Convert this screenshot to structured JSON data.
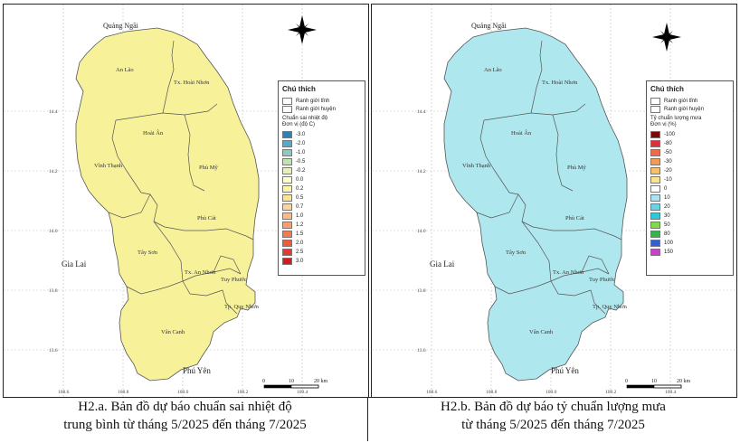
{
  "panels": [
    {
      "caption_line1": "H2.a. Bản đồ dự báo chuẩn sai nhiệt độ",
      "caption_line2": "trung bình từ tháng 5/2025 đến tháng 7/2025",
      "fill_color": "#f7f29a",
      "legend": {
        "title": "Chú thích",
        "items": [
          "Ranh giới tỉnh",
          "Ranh giới huyện"
        ],
        "class_title": "Chuẩn sai nhiệt độ",
        "class_unit": "Đơn vị (độ C)",
        "classes": [
          {
            "label": "-3.0",
            "color": "#2b83ba"
          },
          {
            "label": "-2.0",
            "color": "#5aa8c8"
          },
          {
            "label": "-1.0",
            "color": "#8cc9c0"
          },
          {
            "label": "-0.5",
            "color": "#c2e3b0"
          },
          {
            "label": "-0.2",
            "color": "#e6f2b4"
          },
          {
            "label": "0.0",
            "color": "#ffffcc"
          },
          {
            "label": "0.2",
            "color": "#fff3a6"
          },
          {
            "label": "0.5",
            "color": "#fee391"
          },
          {
            "label": "0.7",
            "color": "#fdd49e"
          },
          {
            "label": "1.0",
            "color": "#fdbb84"
          },
          {
            "label": "1.2",
            "color": "#fc9d6b"
          },
          {
            "label": "1.5",
            "color": "#f57a4f"
          },
          {
            "label": "2.0",
            "color": "#ee5a3d"
          },
          {
            "label": "2.5",
            "color": "#e23a2d"
          },
          {
            "label": "3.0",
            "color": "#d7191c"
          }
        ]
      }
    },
    {
      "caption_line1": "H2.b. Bản đồ dự báo tỷ chuẩn lượng mưa",
      "caption_line2": "từ tháng 5/2025 đến tháng 7/2025",
      "fill_color": "#aee8ee",
      "legend": {
        "title": "Chú thích",
        "items": [
          "Ranh giới tỉnh",
          "Ranh giới huyện"
        ],
        "class_title": "Tỷ chuẩn lượng mưa",
        "class_unit": "Đơn vị (%)",
        "classes": [
          {
            "label": "-100",
            "color": "#7a0a0a"
          },
          {
            "label": "-80",
            "color": "#d9303a"
          },
          {
            "label": "-50",
            "color": "#f06a4a"
          },
          {
            "label": "-30",
            "color": "#f59a56"
          },
          {
            "label": "-20",
            "color": "#f6c168"
          },
          {
            "label": "-10",
            "color": "#f8e68e"
          },
          {
            "label": "0",
            "color": "#ffffff"
          },
          {
            "label": "10",
            "color": "#a9e4f0"
          },
          {
            "label": "20",
            "color": "#6ed2e6"
          },
          {
            "label": "30",
            "color": "#2ec9d8"
          },
          {
            "label": "50",
            "color": "#82d94a"
          },
          {
            "label": "80",
            "color": "#36b34a"
          },
          {
            "label": "100",
            "color": "#2f5fd0"
          },
          {
            "label": "150",
            "color": "#c643c6"
          }
        ]
      }
    }
  ],
  "map": {
    "places": {
      "quang_ngai": "Quảng Ngãi",
      "gia_lai": "Gia Lai",
      "phu_yen": "Phú Yên"
    },
    "districts": {
      "an_lao": "An Lão",
      "hoai_nhon": "Tx. Hoài Nhơn",
      "hoai_an": "Hoài Ân",
      "phu_my": "Phù Mỹ",
      "vinh_thanh": "Vĩnh Thạnh",
      "phu_cat": "Phù Cát",
      "tay_son": "Tây Sơn",
      "an_nhon": "Tx. An Nhơn",
      "tuy_phuoc": "Tuy Phước",
      "quy_nhon": "Tp. Quy Nhơn",
      "van_canh": "Vân Canh"
    },
    "lat_ticks": [
      "14.4",
      "14.2",
      "14.0",
      "13.8",
      "13.6"
    ],
    "lon_ticks": [
      "108.6",
      "108.8",
      "109.0",
      "109.2",
      "109.4"
    ],
    "scale": {
      "t0": "0",
      "t1": "10",
      "t2": "20 km"
    }
  }
}
